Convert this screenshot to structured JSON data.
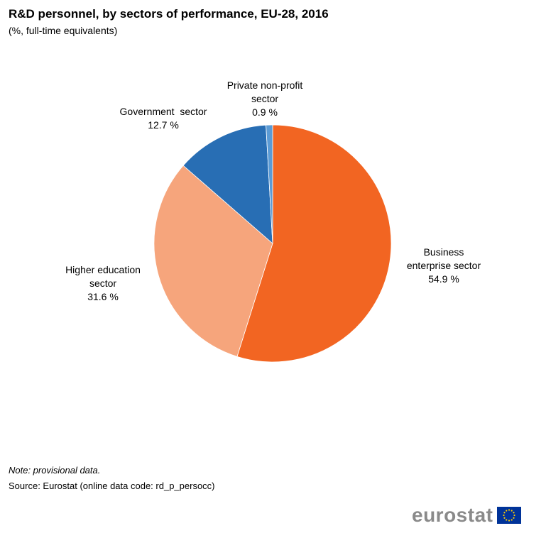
{
  "chart_data": {
    "type": "pie",
    "title": "R&D personnel, by sectors of performance, EU-28, 2016",
    "subtitle": "(%, full-time equivalents)",
    "unit": "%",
    "start_angle_deg": 0,
    "direction": "clockwise",
    "slices": [
      {
        "name": "Business enterprise sector",
        "label_lines": [
          "Business",
          "enterprise sector"
        ],
        "value": 54.9,
        "value_text": "54.9 %",
        "color": "#f26522",
        "label_side": "right"
      },
      {
        "name": "Higher education sector",
        "label_lines": [
          "Higher education",
          "sector"
        ],
        "value": 31.6,
        "value_text": "31.6 %",
        "color": "#f6a57c",
        "label_side": "left"
      },
      {
        "name": "Government sector",
        "label_lines": [
          "Government  sector"
        ],
        "value": 12.7,
        "value_text": "12.7 %",
        "color": "#286eb4",
        "label_side": "left"
      },
      {
        "name": "Private non-profit sector",
        "label_lines": [
          "Private non-profit",
          "sector"
        ],
        "value": 0.9,
        "value_text": "0.9 %",
        "color": "#5b9bd5",
        "label_side": "top"
      }
    ]
  },
  "note": "Note: provisional data.",
  "source": "Source: Eurostat (online data code: rd_p_persocc)",
  "logo": {
    "text": "eurostat",
    "flag_color": "#003399",
    "star_color": "#ffcc00"
  }
}
